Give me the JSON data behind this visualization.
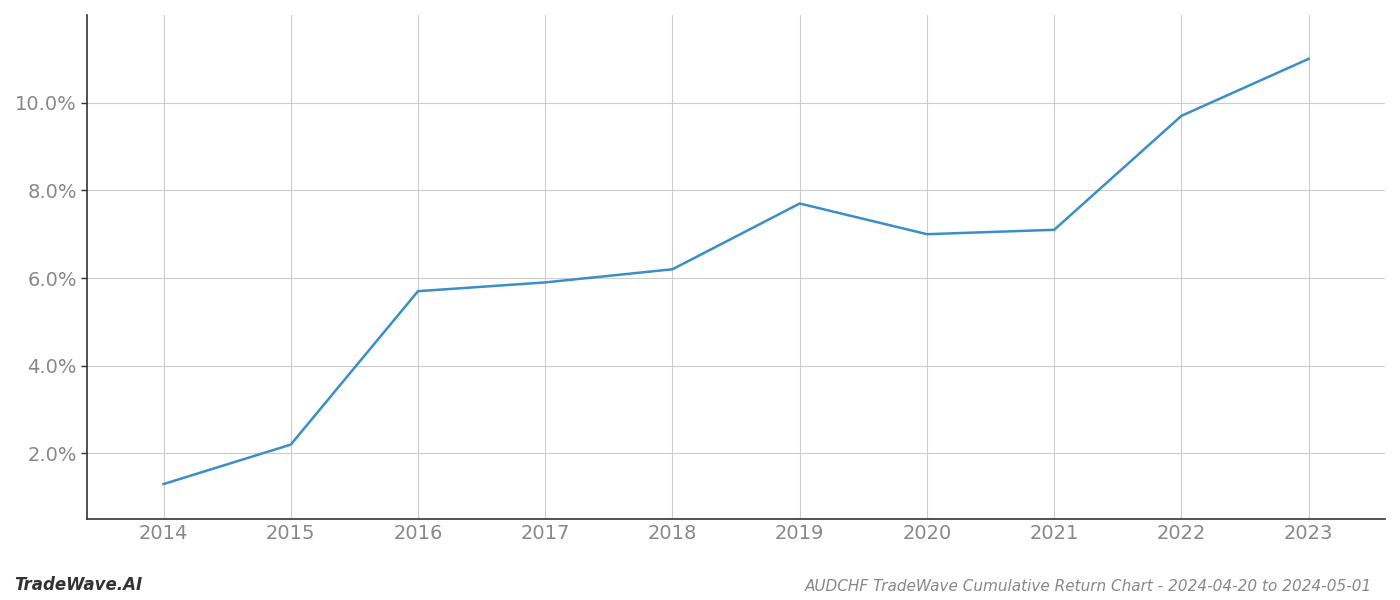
{
  "x_values": [
    2014,
    2015,
    2016,
    2017,
    2018,
    2019,
    2020,
    2021,
    2022,
    2023
  ],
  "y_values": [
    1.3,
    2.2,
    5.7,
    5.9,
    6.2,
    7.7,
    7.0,
    7.1,
    9.7,
    11.0
  ],
  "line_color": "#3a8fc7",
  "line_width": 1.8,
  "title": "AUDCHF TradeWave Cumulative Return Chart - 2024-04-20 to 2024-05-01",
  "xlim": [
    2013.4,
    2023.6
  ],
  "ylim": [
    0.5,
    12.0
  ],
  "xtick_labels": [
    "2014",
    "2015",
    "2016",
    "2017",
    "2018",
    "2019",
    "2020",
    "2021",
    "2022",
    "2023"
  ],
  "xtick_values": [
    2014,
    2015,
    2016,
    2017,
    2018,
    2019,
    2020,
    2021,
    2022,
    2023
  ],
  "ytick_values": [
    2.0,
    4.0,
    6.0,
    8.0,
    10.0
  ],
  "background_color": "#ffffff",
  "grid_color": "#cccccc",
  "watermark_text": "TradeWave.AI",
  "title_fontsize": 11,
  "tick_fontsize": 14,
  "watermark_fontsize": 12,
  "spine_color": "#333333"
}
